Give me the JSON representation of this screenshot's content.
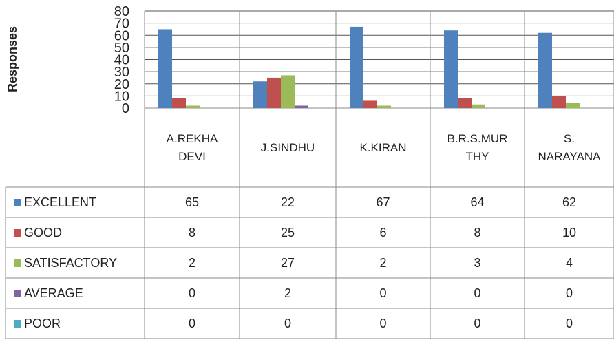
{
  "chart_data": {
    "type": "bar",
    "y_label": "Responses",
    "categories": [
      "A.REKHA DEVI",
      "J.SINDHU",
      "K.KIRAN",
      "B.R.S.MURTHY",
      "S. NARAYANA"
    ],
    "series": [
      {
        "name": "EXCELLENT",
        "color": "#4f81bd",
        "values": [
          65,
          22,
          67,
          64,
          62
        ]
      },
      {
        "name": "GOOD",
        "color": "#c0504d",
        "values": [
          8,
          25,
          6,
          8,
          10
        ]
      },
      {
        "name": "SATISFACTORY",
        "color": "#9bbb59",
        "values": [
          2,
          27,
          2,
          3,
          4
        ]
      },
      {
        "name": "AVERAGE",
        "color": "#8064a2",
        "values": [
          0,
          2,
          0,
          0,
          0
        ]
      },
      {
        "name": "POOR",
        "color": "#4bacc6",
        "values": [
          0,
          0,
          0,
          0,
          0
        ]
      }
    ],
    "ylim": [
      0,
      80
    ],
    "yticks": [
      0,
      10,
      20,
      30,
      40,
      50,
      60,
      70,
      80
    ],
    "grid": true
  }
}
